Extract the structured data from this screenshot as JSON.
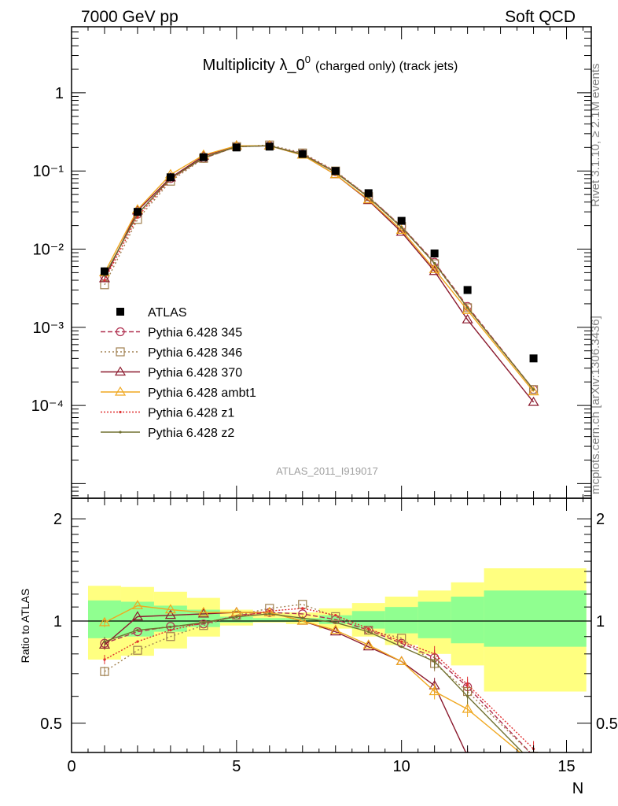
{
  "header": {
    "left": "7000 GeV pp",
    "right": "Soft QCD"
  },
  "side_text": {
    "top": "Rivet 3.1.10, ≥ 2.1M events",
    "bottom": "mcplots.cern.ch [arXiv:1306.3436]"
  },
  "chart_data": [
    {
      "type": "line",
      "title_main": "Multiplicity λ_0",
      "title_sup": "0",
      "title_sub": "(charged only) (track jets)",
      "watermark": "ATLAS_2011_I919017",
      "yscale": "log",
      "xlim": [
        0,
        15.75
      ],
      "ylim": [
        6.5e-06,
        7.0
      ],
      "ytick_labels": [
        "10⁻⁴",
        "10⁻³",
        "10⁻²",
        "10⁻¹",
        "1"
      ],
      "ytick_values": [
        0.0001,
        0.001,
        0.01,
        0.1,
        1
      ],
      "x": [
        1,
        2,
        3,
        4,
        5,
        6,
        7,
        8,
        9,
        10,
        11,
        12,
        14
      ],
      "reference": {
        "name": "ATLAS",
        "values": [
          0.0052,
          0.03,
          0.083,
          0.15,
          0.2,
          0.205,
          0.165,
          0.1,
          0.052,
          0.023,
          0.0088,
          0.003,
          0.0004
        ]
      },
      "series": [
        {
          "name": "Pythia 6.428 345",
          "color": "#b03050",
          "dash": "6,3",
          "marker": "circle",
          "values": [
            0.0045,
            0.028,
            0.08,
            0.145,
            0.205,
            0.21,
            0.165,
            0.098,
            0.047,
            0.0195,
            0.0068,
            0.00185,
            0.00016
          ]
        },
        {
          "name": "Pythia 6.428 346",
          "color": "#a08050",
          "dash": "2,3",
          "marker": "square",
          "values": [
            0.0035,
            0.024,
            0.074,
            0.145,
            0.205,
            0.215,
            0.17,
            0.1,
            0.047,
            0.0195,
            0.0065,
            0.00178,
            0.00016
          ]
        },
        {
          "name": "Pythia 6.428 370",
          "color": "#8b1a2e",
          "dash": "",
          "marker": "triangle",
          "values": [
            0.0042,
            0.031,
            0.082,
            0.155,
            0.21,
            0.21,
            0.16,
            0.09,
            0.042,
            0.0165,
            0.0052,
            0.00125,
            0.00011
          ]
        },
        {
          "name": "Pythia 6.428 ambt1",
          "color": "#f0a820",
          "dash": "",
          "marker": "triangle",
          "values": [
            0.005,
            0.032,
            0.09,
            0.16,
            0.21,
            0.21,
            0.16,
            0.09,
            0.043,
            0.0175,
            0.0055,
            0.00165,
            0.00015
          ]
        },
        {
          "name": "Pythia 6.428 z1",
          "color": "#e03030",
          "dash": "2,2",
          "marker": "dot",
          "values": [
            0.004,
            0.026,
            0.078,
            0.148,
            0.205,
            0.21,
            0.165,
            0.097,
            0.046,
            0.019,
            0.0066,
            0.0018,
            0.00016
          ]
        },
        {
          "name": "Pythia 6.428 z2",
          "color": "#707030",
          "dash": "",
          "marker": "dot",
          "values": [
            0.0046,
            0.028,
            0.08,
            0.148,
            0.205,
            0.21,
            0.163,
            0.096,
            0.046,
            0.019,
            0.0066,
            0.00178,
            0.00016
          ]
        }
      ]
    },
    {
      "type": "line",
      "ylabel": "Ratio to ATLAS",
      "xlabel": "N",
      "yscale": "log",
      "xlim": [
        0,
        15.75
      ],
      "ylim": [
        0.41,
        2.3
      ],
      "xtick_labels": [
        "0",
        "5",
        "10",
        "15"
      ],
      "xtick_values": [
        0,
        5,
        10,
        15
      ],
      "ytick_labels": [
        "0.5",
        "1",
        "2"
      ],
      "ytick_values": [
        0.5,
        1,
        2
      ],
      "bands": {
        "x_edges": [
          0.5,
          1.5,
          2.5,
          3.5,
          4.5,
          5.5,
          6.5,
          7.5,
          8.5,
          9.5,
          10.5,
          11.5,
          12.5,
          15.6
        ],
        "yellow_low": [
          0.77,
          0.79,
          0.83,
          0.9,
          0.97,
          0.99,
          0.98,
          0.95,
          0.9,
          0.85,
          0.8,
          0.74,
          0.62
        ],
        "yellow_high": [
          1.27,
          1.26,
          1.22,
          1.17,
          1.08,
          1.06,
          1.06,
          1.09,
          1.13,
          1.18,
          1.23,
          1.3,
          1.43
        ],
        "green_low": [
          0.89,
          0.9,
          0.93,
          0.96,
          0.99,
          0.995,
          0.995,
          0.98,
          0.95,
          0.92,
          0.89,
          0.86,
          0.84
        ],
        "green_high": [
          1.15,
          1.14,
          1.11,
          1.08,
          1.03,
          1.02,
          1.02,
          1.04,
          1.07,
          1.1,
          1.14,
          1.18,
          1.23
        ]
      },
      "series": [
        {
          "name": "Pythia 6.428 345",
          "values": [
            0.86,
            0.93,
            0.965,
            0.98,
            1.04,
            1.06,
            1.05,
            1.01,
            0.94,
            0.86,
            0.78,
            0.64,
            0.4
          ]
        },
        {
          "name": "Pythia 6.428 346",
          "values": [
            0.71,
            0.82,
            0.9,
            0.97,
            1.04,
            1.09,
            1.12,
            1.03,
            0.94,
            0.89,
            0.75,
            0.62,
            0.4
          ]
        },
        {
          "name": "Pythia 6.428 370",
          "values": [
            0.85,
            1.03,
            1.04,
            1.05,
            1.06,
            1.06,
            1.0,
            0.93,
            0.84,
            0.76,
            0.645,
            0.4,
            0.29
          ]
        },
        {
          "name": "Pythia 6.428 ambt1",
          "values": [
            0.99,
            1.11,
            1.08,
            1.06,
            1.06,
            1.06,
            1.0,
            0.94,
            0.85,
            0.76,
            0.62,
            0.55,
            0.38
          ]
        },
        {
          "name": "Pythia 6.428 z1",
          "values": [
            0.77,
            0.87,
            0.94,
            0.99,
            1.03,
            1.07,
            1.09,
            1.04,
            0.95,
            0.87,
            0.8,
            0.65,
            0.42
          ]
        },
        {
          "name": "Pythia 6.428 z2",
          "values": [
            0.87,
            0.94,
            0.96,
            0.99,
            1.03,
            1.05,
            1.02,
            0.99,
            0.93,
            0.84,
            0.76,
            0.6,
            0.38
          ]
        }
      ]
    }
  ]
}
